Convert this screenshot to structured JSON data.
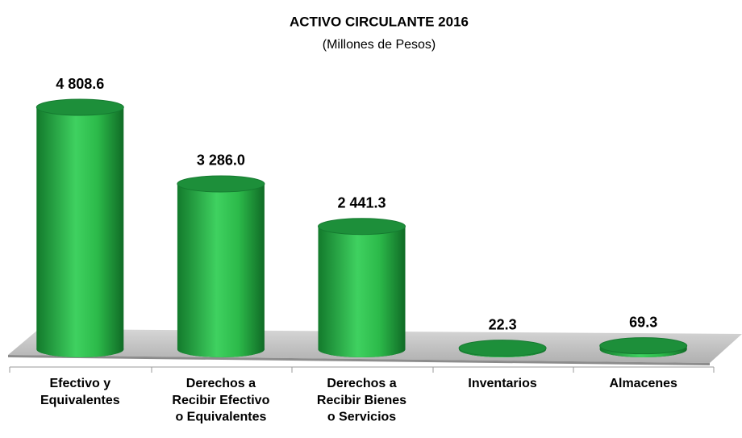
{
  "chart_data": {
    "type": "cylinder-bar",
    "title": "ACTIVO CIRCULANTE  2016",
    "subtitle": "(Millones de Pesos)",
    "categories": [
      "Efectivo y\nEquivalentes",
      "Derechos a\nRecibir Efectivo\no Equivalentes",
      "Derechos a\nRecibir Bienes\no Servicios",
      "Inventarios",
      "Almacenes"
    ],
    "values": [
      4808.6,
      3286.0,
      2441.3,
      22.3,
      69.3
    ],
    "value_labels": [
      "4 808.6",
      "3 286.0",
      "2 441.3",
      "22.3",
      "69.3"
    ],
    "color": "#2db84a"
  }
}
